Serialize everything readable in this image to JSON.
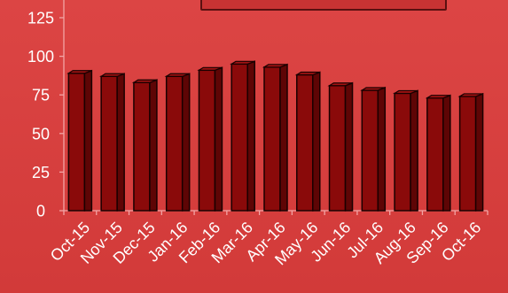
{
  "chart_data": {
    "type": "bar",
    "categories": [
      "Oct-15",
      "Nov-15",
      "Dec-15",
      "Jan-16",
      "Feb-16",
      "Mar-16",
      "Apr-16",
      "May-16",
      "Jun-16",
      "Jul-16",
      "Aug-16",
      "Sep-16",
      "Oct-16"
    ],
    "values": [
      89,
      87,
      83,
      87,
      91,
      95,
      93,
      88,
      81,
      78,
      76,
      73,
      74
    ],
    "title": "",
    "xlabel": "",
    "ylabel": "",
    "ylim": [
      0,
      125
    ],
    "yticks": [
      0,
      25,
      50,
      75,
      100,
      125
    ],
    "grid": false,
    "legend": "none",
    "colors": {
      "background": "#d9403f",
      "bar_fill": "#8a0a0a",
      "bar_side": "#5e0505",
      "bar_outline": "#1a0000",
      "axis": "#f2a5a5",
      "text": "#ffffff",
      "title_box_fill": "#c83333",
      "title_box_border": "#5a1010"
    }
  }
}
